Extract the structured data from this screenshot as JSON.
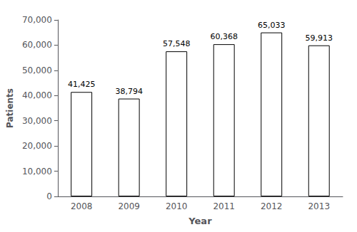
{
  "chart_data": {
    "type": "bar",
    "xlabel": "Year",
    "ylabel": "Patients",
    "categories": [
      "2008",
      "2009",
      "2010",
      "2011",
      "2012",
      "2013"
    ],
    "values": [
      41425,
      38794,
      57548,
      60368,
      65033,
      59913
    ],
    "value_labels": [
      "41,425",
      "38,794",
      "57,548",
      "60,368",
      "65,033",
      "59,913"
    ],
    "data_labels": true,
    "color": "#ffffff",
    "ylim": [
      0,
      70000
    ],
    "yticks": [
      0,
      {
        "value": 10000,
        "label": "10,000"
      },
      {
        "value": 20000,
        "label": "20,000"
      },
      {
        "value": 30000,
        "label": "30,000"
      },
      {
        "value": 40000,
        "label": "40,000"
      },
      {
        "value": 50000,
        "label": "50,000"
      },
      {
        "value": 60000,
        "label": "60,000"
      },
      {
        "value": 70000,
        "label": "70,000"
      }
    ],
    "grid": false
  }
}
